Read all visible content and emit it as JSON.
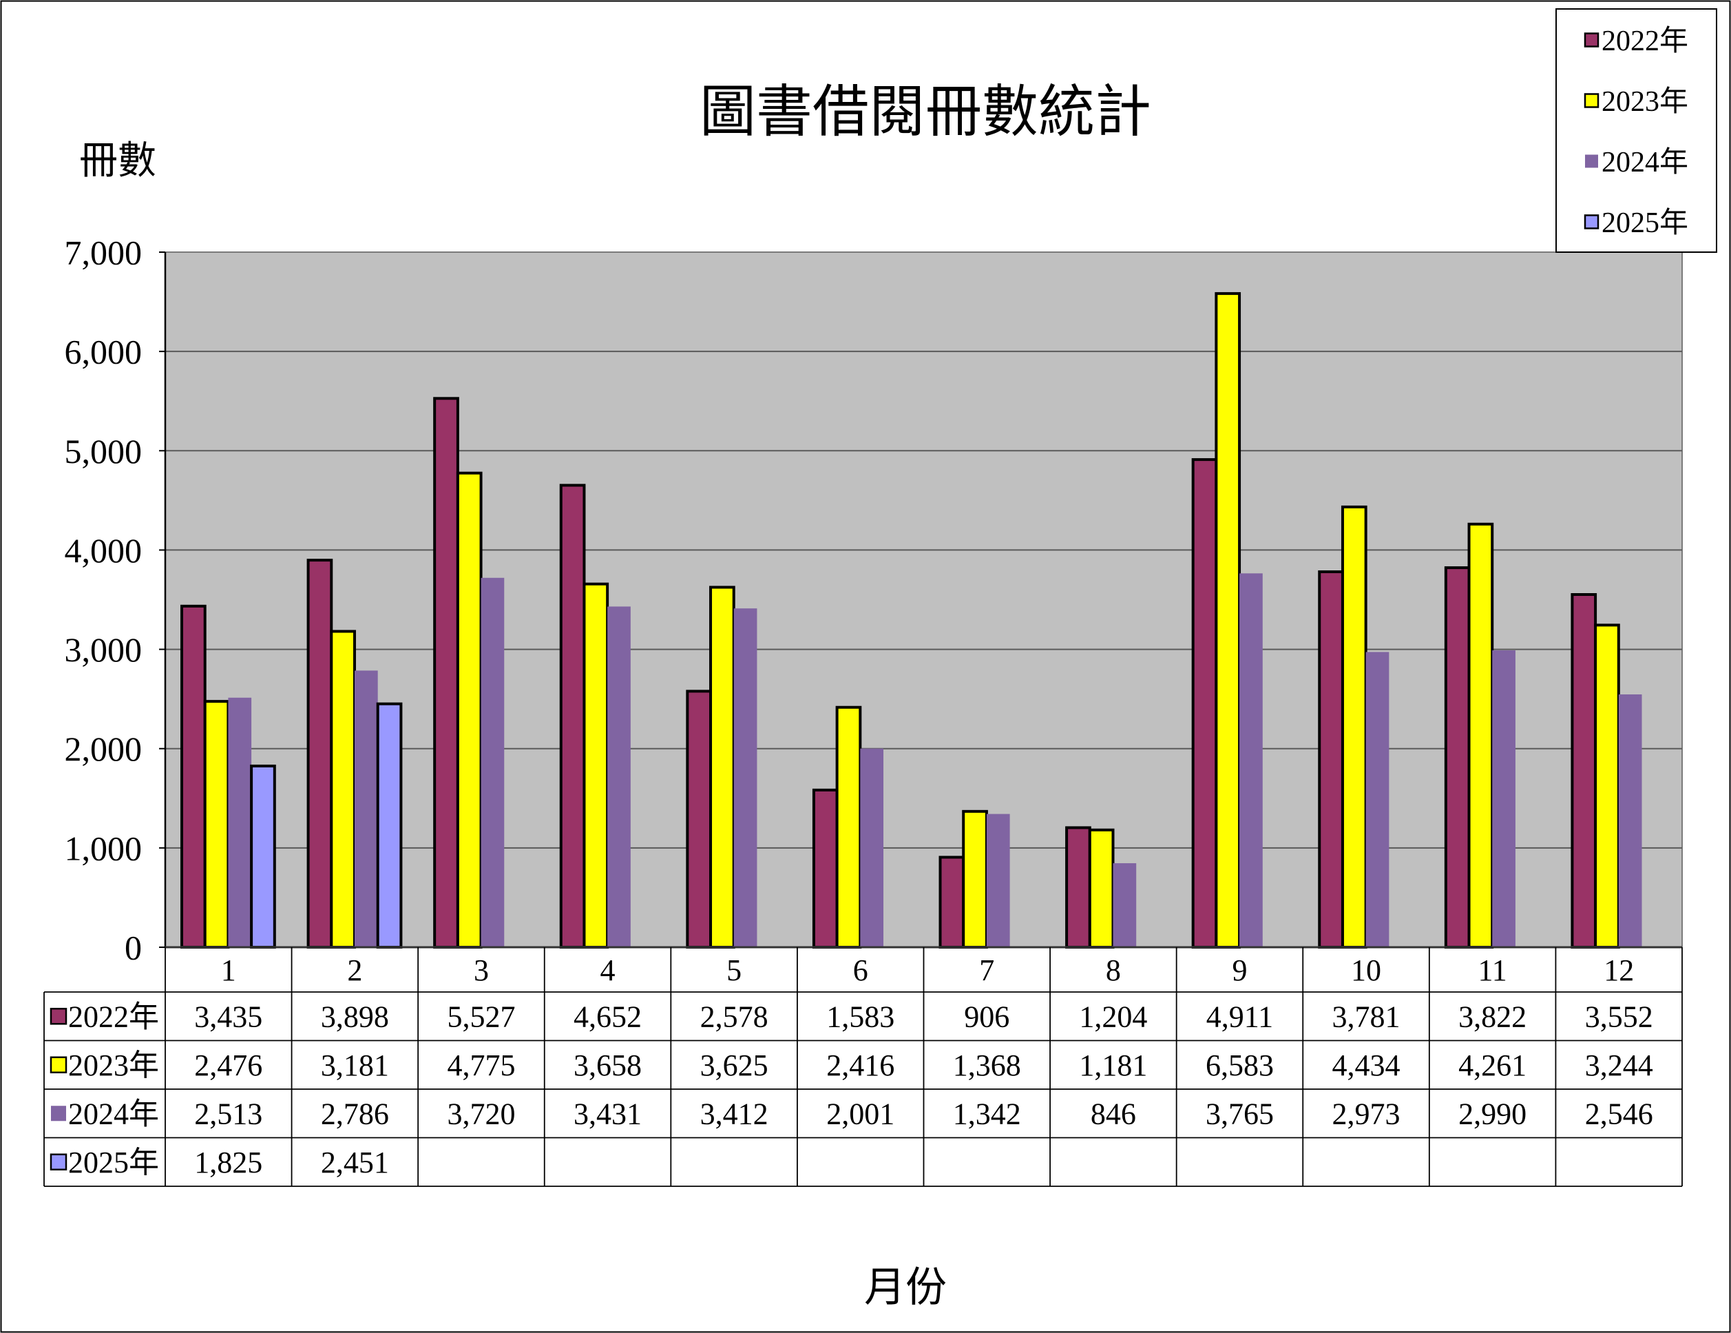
{
  "chart_data": {
    "type": "bar",
    "title": "圖書借閱冊數統計",
    "ylabel": "冊數",
    "xlabel": "月份",
    "ylim": [
      0,
      7000
    ],
    "yticks": [
      0,
      1000,
      2000,
      3000,
      4000,
      5000,
      6000,
      7000
    ],
    "grid": true,
    "legend": "top-right",
    "data_table": true,
    "plot_background": "#C0C0C0",
    "categories": [
      "1",
      "2",
      "3",
      "4",
      "5",
      "6",
      "7",
      "8",
      "9",
      "10",
      "11",
      "12"
    ],
    "series": [
      {
        "name": "2022年",
        "color": "#993366",
        "values": [
          3435,
          3898,
          5527,
          4652,
          2578,
          1583,
          906,
          1204,
          4911,
          3781,
          3822,
          3552
        ]
      },
      {
        "name": "2023年",
        "color": "#FFFF00",
        "values": [
          2476,
          3181,
          4775,
          3658,
          3625,
          2416,
          1368,
          1181,
          6583,
          4434,
          4261,
          3244
        ]
      },
      {
        "name": "2024年",
        "color": "#8064A2",
        "values": [
          2513,
          2786,
          3720,
          3431,
          3412,
          2001,
          1342,
          846,
          3765,
          2973,
          2990,
          2546
        ]
      },
      {
        "name": "2025年",
        "color": "#9999FF",
        "values": [
          1825,
          2451,
          null,
          null,
          null,
          null,
          null,
          null,
          null,
          null,
          null,
          null
        ]
      }
    ]
  }
}
